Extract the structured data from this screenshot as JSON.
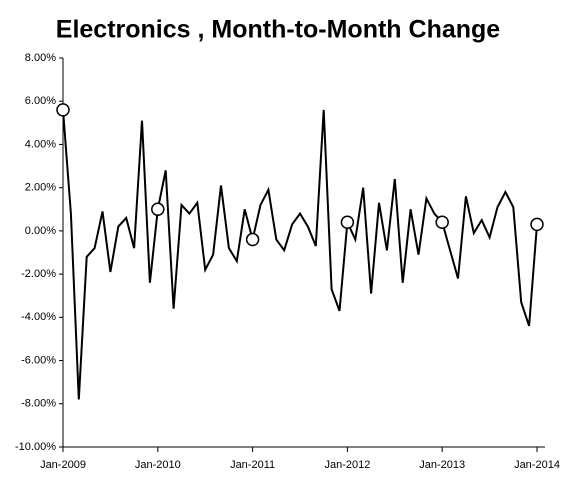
{
  "chart_data": {
    "type": "line",
    "title": "Electronics , Month-to-Month Change",
    "categories": [
      "Jan-2009",
      null,
      null,
      null,
      null,
      null,
      null,
      null,
      null,
      null,
      null,
      null,
      "Jan-2010",
      null,
      null,
      null,
      null,
      null,
      null,
      null,
      null,
      null,
      null,
      null,
      "Jan-2011",
      null,
      null,
      null,
      null,
      null,
      null,
      null,
      null,
      null,
      null,
      null,
      "Jan-2012",
      null,
      null,
      null,
      null,
      null,
      null,
      null,
      null,
      null,
      null,
      null,
      "Jan-2013",
      null,
      null,
      null,
      null,
      null,
      null,
      null,
      null,
      null,
      null,
      null,
      "Jan-2014"
    ],
    "series": [
      {
        "name": "Electronics",
        "color": "#000000",
        "values": [
          5.6,
          0.8,
          -7.8,
          -1.2,
          -0.8,
          0.9,
          -1.9,
          0.2,
          0.6,
          -0.8,
          5.1,
          -2.4,
          1.0,
          2.8,
          -3.6,
          1.2,
          0.8,
          1.3,
          -1.8,
          -1.1,
          2.1,
          -0.8,
          -1.4,
          1.0,
          -0.4,
          1.2,
          1.9,
          -0.4,
          -0.9,
          0.3,
          0.8,
          0.2,
          -0.7,
          5.6,
          -2.7,
          -3.7,
          0.4,
          -0.4,
          2.0,
          -2.9,
          1.3,
          -0.9,
          2.4,
          -2.4,
          1.0,
          -1.1,
          1.5,
          0.8,
          0.4,
          -0.9,
          -2.2,
          1.6,
          -0.1,
          0.5,
          -0.3,
          1.1,
          1.8,
          1.1,
          -3.3,
          -4.4,
          0.3
        ]
      }
    ],
    "ylim": [
      -10,
      8
    ],
    "yticks": [
      {
        "value": -10,
        "label": "-10.00%"
      },
      {
        "value": -8,
        "label": "-8.00%"
      },
      {
        "value": -6,
        "label": "-6.00%"
      },
      {
        "value": -4,
        "label": "-4.00%"
      },
      {
        "value": -2,
        "label": "-2.00%"
      },
      {
        "value": 0,
        "label": "0.00%"
      },
      {
        "value": 2,
        "label": "2.00%"
      },
      {
        "value": 4,
        "label": "4.00%"
      },
      {
        "value": 6,
        "label": "6.00%"
      },
      {
        "value": 8,
        "label": "8.00%"
      }
    ]
  }
}
